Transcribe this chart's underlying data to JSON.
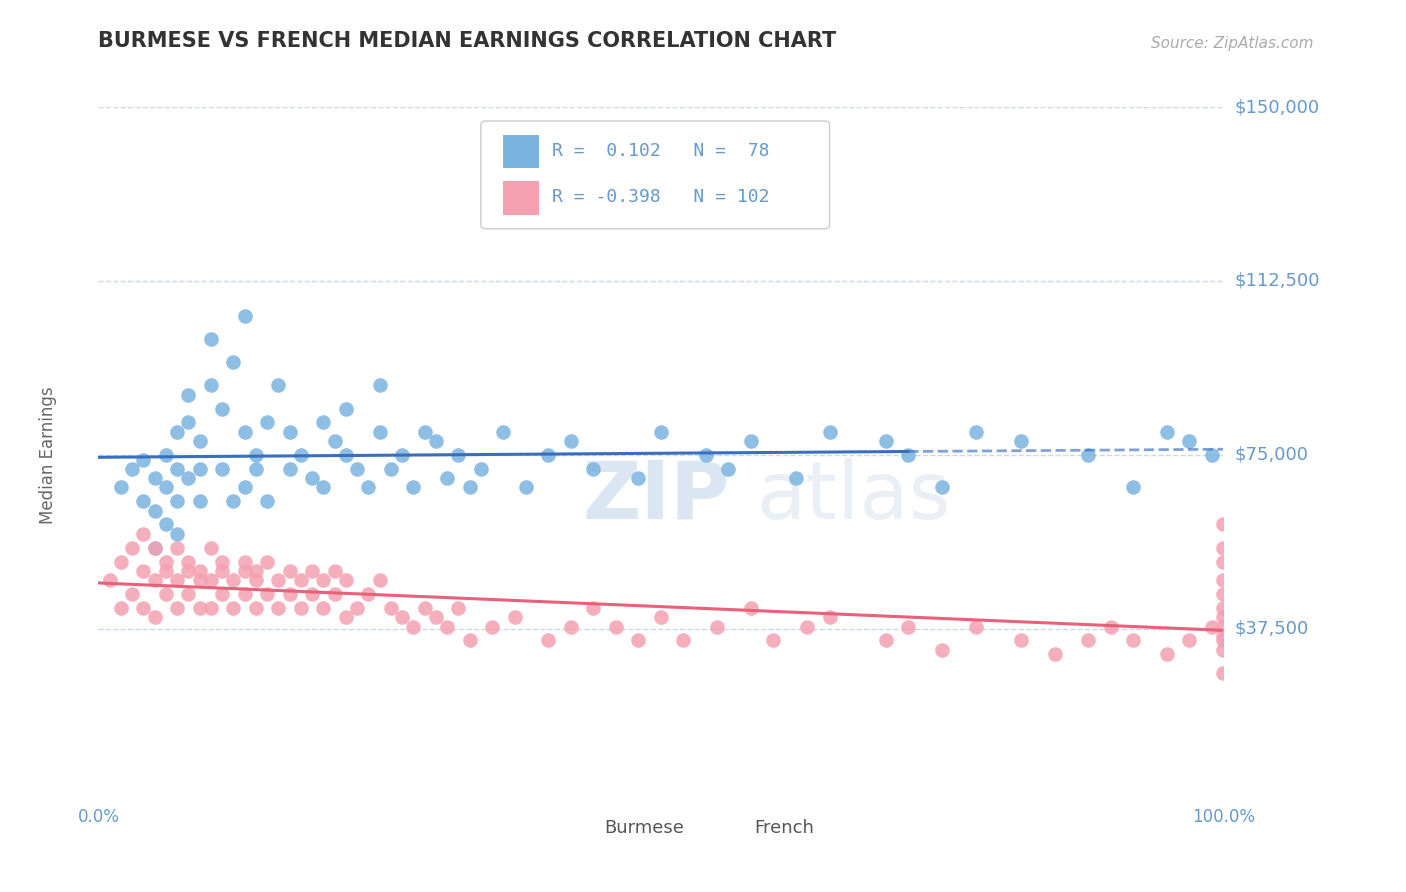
{
  "title": "BURMESE VS FRENCH MEDIAN EARNINGS CORRELATION CHART",
  "source_text": "Source: ZipAtlas.com",
  "ylabel": "Median Earnings",
  "watermark_zip": "ZIP",
  "watermark_atlas": "atlas",
  "xlim": [
    0,
    1
  ],
  "ylim": [
    0,
    150000
  ],
  "yticks": [
    0,
    37500,
    75000,
    112500,
    150000
  ],
  "ytick_labels": [
    "",
    "$37,500",
    "$75,000",
    "$112,500",
    "$150,000"
  ],
  "xtick_labels": [
    "0.0%",
    "100.0%"
  ],
  "burmese_color": "#7ab3e0",
  "french_color": "#f4a0b0",
  "burmese_line_color": "#3a6fbf",
  "french_line_color": "#e8607a",
  "R_burmese": 0.102,
  "N_burmese": 78,
  "R_french": -0.398,
  "N_french": 102,
  "background_color": "#ffffff",
  "grid_color": "#c8daea",
  "title_color": "#333333",
  "axis_label_color": "#6699cc",
  "burmese_x": [
    0.02,
    0.03,
    0.04,
    0.04,
    0.05,
    0.05,
    0.05,
    0.06,
    0.06,
    0.06,
    0.07,
    0.07,
    0.07,
    0.07,
    0.08,
    0.08,
    0.08,
    0.09,
    0.09,
    0.09,
    0.1,
    0.1,
    0.11,
    0.11,
    0.12,
    0.12,
    0.13,
    0.13,
    0.13,
    0.14,
    0.14,
    0.15,
    0.15,
    0.16,
    0.17,
    0.17,
    0.18,
    0.19,
    0.2,
    0.2,
    0.21,
    0.22,
    0.22,
    0.23,
    0.24,
    0.25,
    0.25,
    0.26,
    0.27,
    0.28,
    0.29,
    0.3,
    0.31,
    0.32,
    0.33,
    0.34,
    0.36,
    0.38,
    0.4,
    0.42,
    0.44,
    0.48,
    0.5,
    0.54,
    0.56,
    0.58,
    0.62,
    0.65,
    0.7,
    0.72,
    0.75,
    0.78,
    0.82,
    0.88,
    0.92,
    0.95,
    0.97,
    0.99
  ],
  "burmese_y": [
    68000,
    72000,
    65000,
    74000,
    55000,
    63000,
    70000,
    60000,
    68000,
    75000,
    80000,
    58000,
    65000,
    72000,
    82000,
    70000,
    88000,
    78000,
    65000,
    72000,
    90000,
    100000,
    72000,
    85000,
    95000,
    65000,
    80000,
    68000,
    105000,
    75000,
    72000,
    82000,
    65000,
    90000,
    72000,
    80000,
    75000,
    70000,
    82000,
    68000,
    78000,
    75000,
    85000,
    72000,
    68000,
    80000,
    90000,
    72000,
    75000,
    68000,
    80000,
    78000,
    70000,
    75000,
    68000,
    72000,
    80000,
    68000,
    75000,
    78000,
    72000,
    70000,
    80000,
    75000,
    72000,
    78000,
    70000,
    80000,
    78000,
    75000,
    68000,
    80000,
    78000,
    75000,
    68000,
    80000,
    78000,
    75000
  ],
  "french_x": [
    0.01,
    0.02,
    0.02,
    0.03,
    0.03,
    0.04,
    0.04,
    0.04,
    0.05,
    0.05,
    0.05,
    0.06,
    0.06,
    0.06,
    0.07,
    0.07,
    0.07,
    0.08,
    0.08,
    0.08,
    0.09,
    0.09,
    0.09,
    0.1,
    0.1,
    0.1,
    0.11,
    0.11,
    0.11,
    0.12,
    0.12,
    0.13,
    0.13,
    0.13,
    0.14,
    0.14,
    0.14,
    0.15,
    0.15,
    0.16,
    0.16,
    0.17,
    0.17,
    0.18,
    0.18,
    0.19,
    0.19,
    0.2,
    0.2,
    0.21,
    0.21,
    0.22,
    0.22,
    0.23,
    0.24,
    0.25,
    0.26,
    0.27,
    0.28,
    0.29,
    0.3,
    0.31,
    0.32,
    0.33,
    0.35,
    0.37,
    0.4,
    0.42,
    0.44,
    0.46,
    0.48,
    0.5,
    0.52,
    0.55,
    0.58,
    0.6,
    0.63,
    0.65,
    0.7,
    0.72,
    0.75,
    0.78,
    0.82,
    0.85,
    0.88,
    0.9,
    0.92,
    0.95,
    0.97,
    0.99,
    1.0,
    1.0,
    1.0,
    1.0,
    1.0,
    1.0,
    1.0,
    1.0,
    1.0,
    1.0,
    1.0,
    1.0
  ],
  "french_y": [
    48000,
    52000,
    42000,
    55000,
    45000,
    50000,
    58000,
    42000,
    48000,
    55000,
    40000,
    50000,
    45000,
    52000,
    48000,
    55000,
    42000,
    50000,
    45000,
    52000,
    48000,
    42000,
    50000,
    55000,
    42000,
    48000,
    50000,
    45000,
    52000,
    48000,
    42000,
    50000,
    45000,
    52000,
    48000,
    50000,
    42000,
    45000,
    52000,
    48000,
    42000,
    50000,
    45000,
    48000,
    42000,
    50000,
    45000,
    48000,
    42000,
    50000,
    45000,
    48000,
    40000,
    42000,
    45000,
    48000,
    42000,
    40000,
    38000,
    42000,
    40000,
    38000,
    42000,
    35000,
    38000,
    40000,
    35000,
    38000,
    42000,
    38000,
    35000,
    40000,
    35000,
    38000,
    42000,
    35000,
    38000,
    40000,
    35000,
    38000,
    33000,
    38000,
    35000,
    32000,
    35000,
    38000,
    35000,
    32000,
    35000,
    38000,
    60000,
    55000,
    28000,
    45000,
    52000,
    42000,
    48000,
    38000,
    40000,
    35000,
    33000,
    36000
  ]
}
